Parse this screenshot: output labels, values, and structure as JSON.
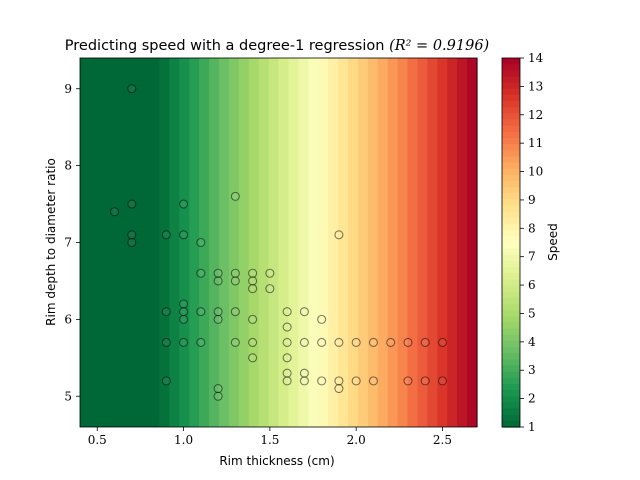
{
  "chart_data": {
    "type": "scatter",
    "title_prefix": "Predicting speed with a degree-1 regression ",
    "title_math": "(R² = 0.9196)",
    "xlabel": "Rim thickness (cm)",
    "ylabel": "Rim depth to diameter ratio",
    "xlim": [
      0.4,
      2.7
    ],
    "ylim": [
      4.6,
      9.4
    ],
    "xticks": [
      0.5,
      1.0,
      1.5,
      2.0,
      2.5
    ],
    "xtick_labels": [
      "0.5",
      "1.0",
      "1.5",
      "2.0",
      "2.5"
    ],
    "yticks": [
      5,
      6,
      7,
      8,
      9
    ],
    "ytick_labels": [
      "5",
      "6",
      "7",
      "8",
      "9"
    ],
    "background_field": {
      "variable": "Speed",
      "depends_on": "x",
      "colormap": "RdYlGn_r",
      "vmin": 1,
      "vmax": 14,
      "stops": [
        "#006837",
        "#1a9850",
        "#66bd63",
        "#a6d96a",
        "#d9ef8b",
        "#ffffbf",
        "#fee08b",
        "#fdae61",
        "#f46d43",
        "#d73027",
        "#a50026"
      ]
    },
    "colorbar": {
      "label": "Speed",
      "ticks": [
        1,
        2,
        3,
        4,
        5,
        6,
        7,
        8,
        9,
        10,
        11,
        12,
        13,
        14
      ],
      "tick_labels": [
        "1",
        "2",
        "3",
        "4",
        "5",
        "6",
        "7",
        "8",
        "9",
        "10",
        "11",
        "12",
        "13",
        "14"
      ]
    },
    "points": [
      [
        0.6,
        7.4
      ],
      [
        0.7,
        9.0
      ],
      [
        0.7,
        7.5
      ],
      [
        0.7,
        7.1
      ],
      [
        0.7,
        7.0
      ],
      [
        0.9,
        7.1
      ],
      [
        0.9,
        6.1
      ],
      [
        0.9,
        5.7
      ],
      [
        0.9,
        5.2
      ],
      [
        1.0,
        7.5
      ],
      [
        1.0,
        7.1
      ],
      [
        1.0,
        6.2
      ],
      [
        1.0,
        6.1
      ],
      [
        1.0,
        6.0
      ],
      [
        1.0,
        5.7
      ],
      [
        1.1,
        7.0
      ],
      [
        1.1,
        6.6
      ],
      [
        1.1,
        6.1
      ],
      [
        1.1,
        5.7
      ],
      [
        1.2,
        6.6
      ],
      [
        1.2,
        6.5
      ],
      [
        1.2,
        6.1
      ],
      [
        1.2,
        6.0
      ],
      [
        1.2,
        5.1
      ],
      [
        1.2,
        5.0
      ],
      [
        1.3,
        7.6
      ],
      [
        1.3,
        6.6
      ],
      [
        1.3,
        6.5
      ],
      [
        1.3,
        6.1
      ],
      [
        1.3,
        5.7
      ],
      [
        1.4,
        6.6
      ],
      [
        1.4,
        6.5
      ],
      [
        1.4,
        6.4
      ],
      [
        1.4,
        6.0
      ],
      [
        1.4,
        5.7
      ],
      [
        1.4,
        5.5
      ],
      [
        1.5,
        6.6
      ],
      [
        1.5,
        6.4
      ],
      [
        1.6,
        6.1
      ],
      [
        1.6,
        5.9
      ],
      [
        1.6,
        5.7
      ],
      [
        1.6,
        5.5
      ],
      [
        1.6,
        5.3
      ],
      [
        1.6,
        5.2
      ],
      [
        1.7,
        6.1
      ],
      [
        1.7,
        5.7
      ],
      [
        1.7,
        5.3
      ],
      [
        1.7,
        5.2
      ],
      [
        1.8,
        6.0
      ],
      [
        1.8,
        5.7
      ],
      [
        1.8,
        5.2
      ],
      [
        1.9,
        7.1
      ],
      [
        1.9,
        5.7
      ],
      [
        1.9,
        5.2
      ],
      [
        1.9,
        5.1
      ],
      [
        2.0,
        5.7
      ],
      [
        2.0,
        5.2
      ],
      [
        2.1,
        5.7
      ],
      [
        2.1,
        5.2
      ],
      [
        2.2,
        5.7
      ],
      [
        2.3,
        5.7
      ],
      [
        2.3,
        5.2
      ],
      [
        2.4,
        5.7
      ],
      [
        2.4,
        5.2
      ],
      [
        2.5,
        5.7
      ],
      [
        2.5,
        5.2
      ]
    ]
  }
}
